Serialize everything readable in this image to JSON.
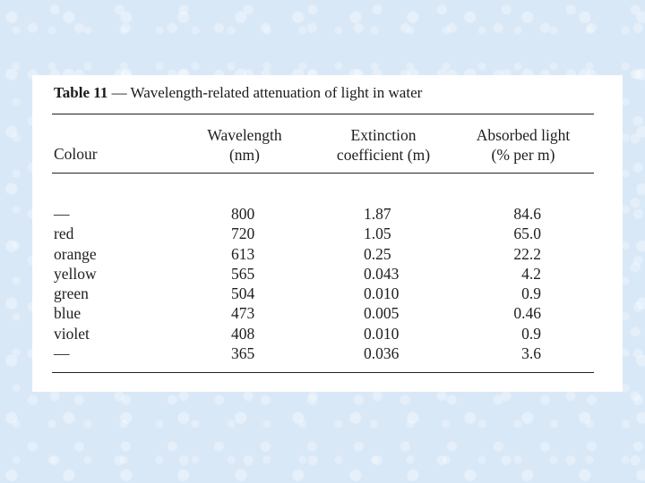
{
  "table": {
    "title_bold": "Table 11",
    "title_rest": " — Wavelength-related attenuation of light in water",
    "headers": {
      "colour": "Colour",
      "wavelength_l1": "Wavelength",
      "wavelength_l2": "(nm)",
      "extinction_l1": "Extinction",
      "extinction_l2": "coefficient (m)",
      "absorbed_l1": "Absorbed light",
      "absorbed_l2": "(% per m)"
    },
    "rows": [
      {
        "colour": "—",
        "wavelength": "800",
        "extinction": "1.87",
        "absorbed": "84.6"
      },
      {
        "colour": "red",
        "wavelength": "720",
        "extinction": "1.05",
        "absorbed": "65.0"
      },
      {
        "colour": "orange",
        "wavelength": "613",
        "extinction": "0.25",
        "absorbed": "22.2"
      },
      {
        "colour": "yellow",
        "wavelength": "565",
        "extinction": "0.043",
        "absorbed": "4.2"
      },
      {
        "colour": "green",
        "wavelength": "504",
        "extinction": "0.010",
        "absorbed": "0.9"
      },
      {
        "colour": "blue",
        "wavelength": "473",
        "extinction": "0.005",
        "absorbed": "0.46"
      },
      {
        "colour": "violet",
        "wavelength": "408",
        "extinction": "0.010",
        "absorbed": "0.9"
      },
      {
        "colour": "—",
        "wavelength": "365",
        "extinction": "0.036",
        "absorbed": "3.6"
      }
    ]
  },
  "colors": {
    "background": "#d9e8f7",
    "panel": "#ffffff",
    "text": "#1e1e1e"
  }
}
